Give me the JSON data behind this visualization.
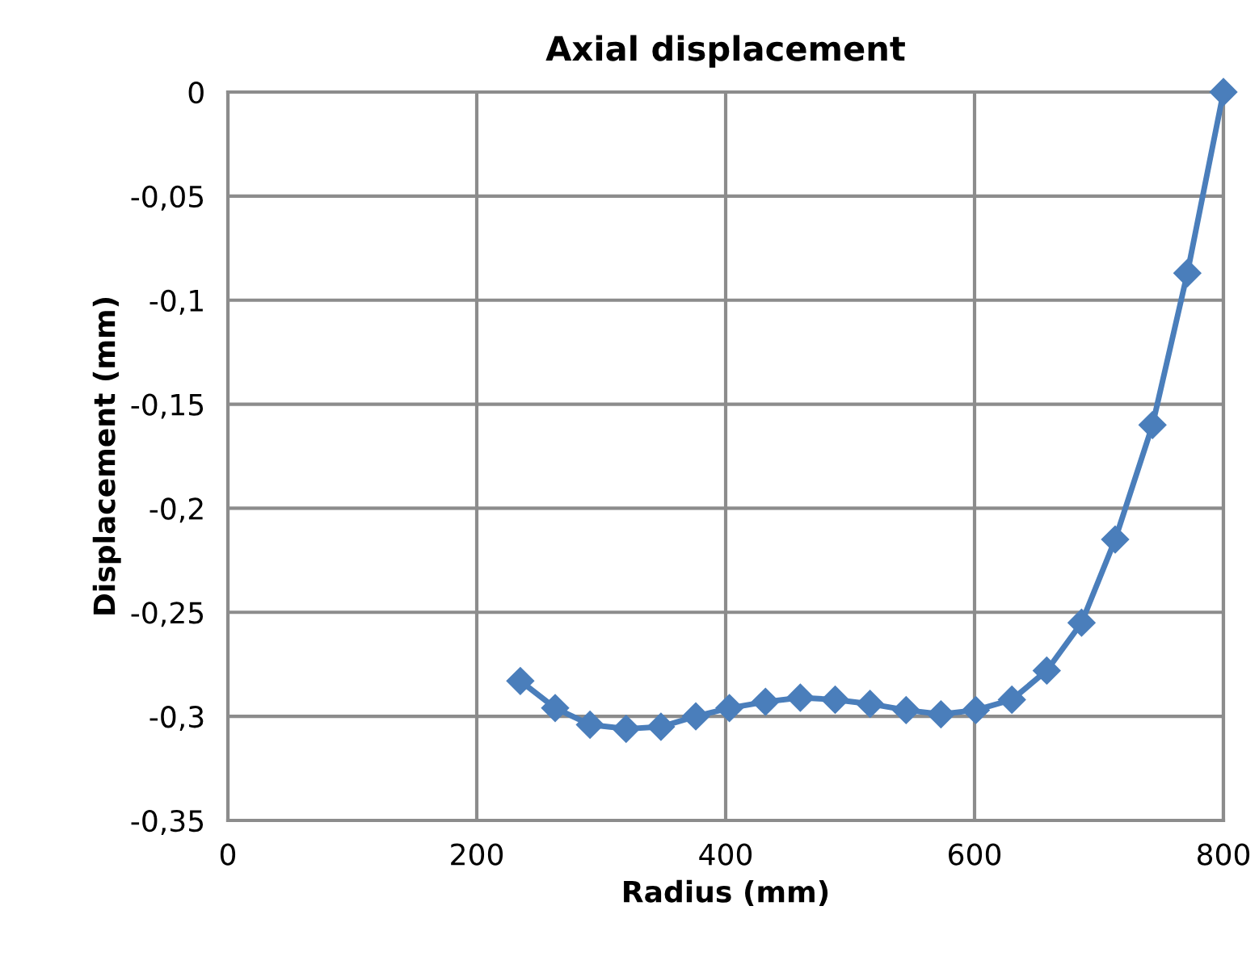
{
  "chart_data": {
    "type": "line",
    "title": "Axial displacement",
    "xlabel": "Radius (mm)",
    "ylabel": "Displacement (mm)",
    "x": [
      235,
      263,
      291,
      320,
      348,
      376,
      403,
      432,
      460,
      488,
      516,
      545,
      573,
      601,
      630,
      658,
      686,
      713,
      743,
      771,
      800
    ],
    "series": [
      {
        "color": "#4a7ebb",
        "values": [
          -0.283,
          -0.296,
          -0.304,
          -0.306,
          -0.305,
          -0.3,
          -0.296,
          -0.293,
          -0.291,
          -0.292,
          -0.294,
          -0.297,
          -0.299,
          -0.297,
          -0.292,
          -0.278,
          -0.255,
          -0.215,
          -0.16,
          -0.087,
          0
        ]
      }
    ],
    "xlim": [
      0,
      800
    ],
    "xticks": [
      0,
      200,
      400,
      600,
      800
    ],
    "ylim": [
      -0.35,
      0
    ],
    "yticks": [
      {
        "value": -0.35,
        "label": "-0,35"
      },
      {
        "value": -0.3,
        "label": "-0,3"
      },
      {
        "value": -0.25,
        "label": "-0,25"
      },
      {
        "value": -0.2,
        "label": "-0,2"
      },
      {
        "value": -0.15,
        "label": "-0,15"
      },
      {
        "value": -0.1,
        "label": "-0,1"
      },
      {
        "value": -0.05,
        "label": "-0,05"
      },
      {
        "value": 0,
        "label": "0"
      }
    ],
    "grid": true,
    "marker": "diamond",
    "line_style": "solid"
  }
}
